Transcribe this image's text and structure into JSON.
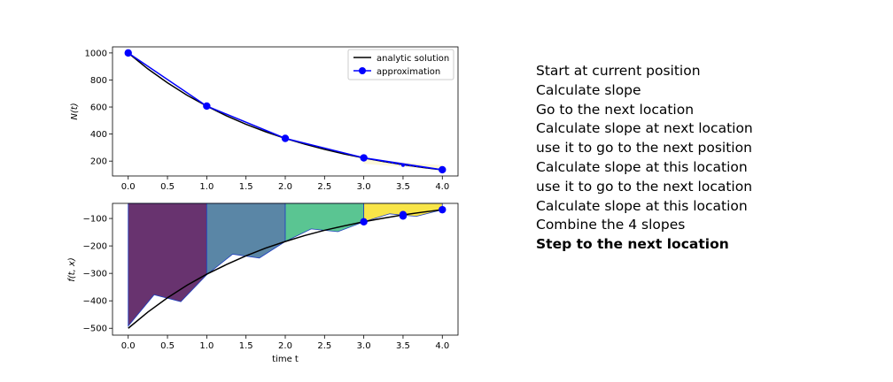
{
  "chart_data": [
    {
      "type": "line",
      "ylabel": "N(t)",
      "xlim": [
        -0.2,
        4.2
      ],
      "ylim": [
        90,
        1045
      ],
      "xticks": [
        "0.0",
        "0.5",
        "1.0",
        "1.5",
        "2.0",
        "2.5",
        "3.0",
        "3.5",
        "4.0"
      ],
      "yticks": [
        "200",
        "400",
        "600",
        "800",
        "1000"
      ],
      "legend_position": "top-right",
      "series": [
        {
          "name": "analytic solution",
          "color": "#000000",
          "kind": "curve",
          "x": [
            0,
            0.25,
            0.5,
            0.75,
            1,
            1.25,
            1.5,
            1.75,
            2,
            2.25,
            2.5,
            2.75,
            3,
            3.25,
            3.5,
            3.75,
            4
          ],
          "y": [
            1000,
            882,
            779,
            687,
            607,
            535,
            472,
            417,
            368,
            325,
            287,
            253,
            223,
            197,
            174,
            153,
            135
          ]
        },
        {
          "name": "approximation",
          "color": "#0000ff",
          "kind": "markers-line",
          "x": [
            0,
            1,
            2,
            3,
            4
          ],
          "y": [
            1000,
            607,
            368,
            224,
            136
          ]
        }
      ],
      "partial_steps": {
        "color": "#0000ff",
        "x": [
          3.0,
          3.5,
          4.0
        ],
        "y": [
          224,
          170,
          136
        ]
      }
    },
    {
      "type": "area",
      "ylabel": "f(t, x)",
      "xlabel": "time t",
      "xlim": [
        -0.2,
        4.2
      ],
      "ylim": [
        -525,
        -45
      ],
      "xticks": [
        "0.0",
        "0.5",
        "1.0",
        "1.5",
        "2.0",
        "2.5",
        "3.0",
        "3.5",
        "4.0"
      ],
      "yticks": [
        "-500",
        "-400",
        "-300",
        "-200",
        "-100"
      ],
      "top_value": -45,
      "analytic_curve": {
        "x": [
          0,
          0.25,
          0.5,
          0.75,
          1,
          1.25,
          1.5,
          1.75,
          2,
          2.25,
          2.5,
          2.75,
          3,
          3.25,
          3.5,
          3.75,
          4
        ],
        "y": [
          -500,
          -441,
          -389,
          -343,
          -303,
          -268,
          -236,
          -208,
          -184,
          -162,
          -143,
          -127,
          -112,
          -99,
          -87,
          -77,
          -68
        ]
      },
      "step_polygons": [
        {
          "color": "#68336f",
          "x": [
            0,
            0.33,
            0.67,
            1.0
          ],
          "y": [
            -492,
            -378,
            -403,
            -305
          ]
        },
        {
          "color": "#5a86a6",
          "x": [
            1.0,
            1.33,
            1.67,
            2.0
          ],
          "y": [
            -305,
            -230,
            -244,
            -184
          ]
        },
        {
          "color": "#5ac592",
          "x": [
            2.0,
            2.33,
            2.67,
            3.0
          ],
          "y": [
            -184,
            -138,
            -148,
            -112
          ]
        },
        {
          "color": "#f8e548",
          "x": [
            3.0,
            3.33,
            3.5,
            3.67,
            4.0
          ],
          "y": [
            -112,
            -83,
            -88,
            -92,
            -68
          ]
        }
      ],
      "markers": {
        "color": "#0000ff",
        "x": [
          3.0,
          3.5,
          3.5,
          4.0
        ],
        "y": [
          -112,
          -86,
          -91,
          -68
        ]
      }
    }
  ],
  "legend": {
    "items": [
      "analytic solution",
      "approximation"
    ]
  },
  "steps_text": [
    "Start at current position",
    "Calculate slope",
    "Go to the next location",
    "Calculate slope at next location",
    "use it to go to the next position",
    "Calculate slope at this location",
    "use it to go to the next location",
    "Calculate slope at this location",
    "Combine the 4 slopes",
    "Step to the next location"
  ]
}
